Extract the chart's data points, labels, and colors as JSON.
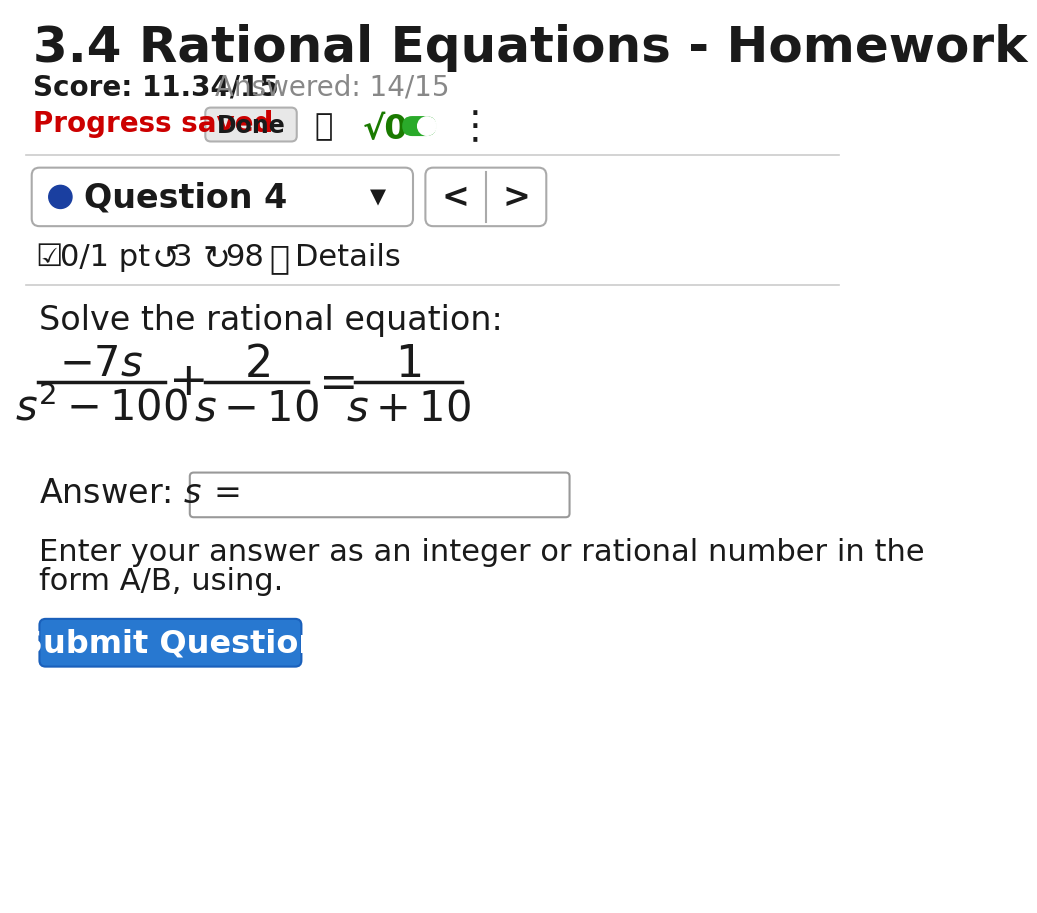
{
  "title": "3.4 Rational Equations - Homework",
  "score_text": "Score: 11.34/15",
  "answered_text": "Answered: 14/15",
  "progress_saved_text": "Progress saved",
  "done_button_text": "Done",
  "sqrt_text": "√0",
  "question_label": "Question 4",
  "points_text": "0/1 pt",
  "undo_num": "3",
  "refresh_num": "98",
  "details_text": "Details",
  "solve_text": "Solve the rational equation:",
  "answer_label": "Answer:",
  "submit_text": "Submit Question",
  "bg_color": "#ffffff",
  "title_color": "#1a1a1a",
  "score_color": "#1a1a1a",
  "answered_color": "#888888",
  "progress_color": "#cc0000",
  "submit_bg": "#2878d0",
  "submit_text_color": "#ffffff",
  "separator_color": "#cccccc",
  "box_border_color": "#aaaaaa",
  "question_dot_color": "#1a3fa0",
  "green_color": "#1a7a00",
  "toggle_color": "#2aaa2a",
  "black": "#1a1a1a"
}
